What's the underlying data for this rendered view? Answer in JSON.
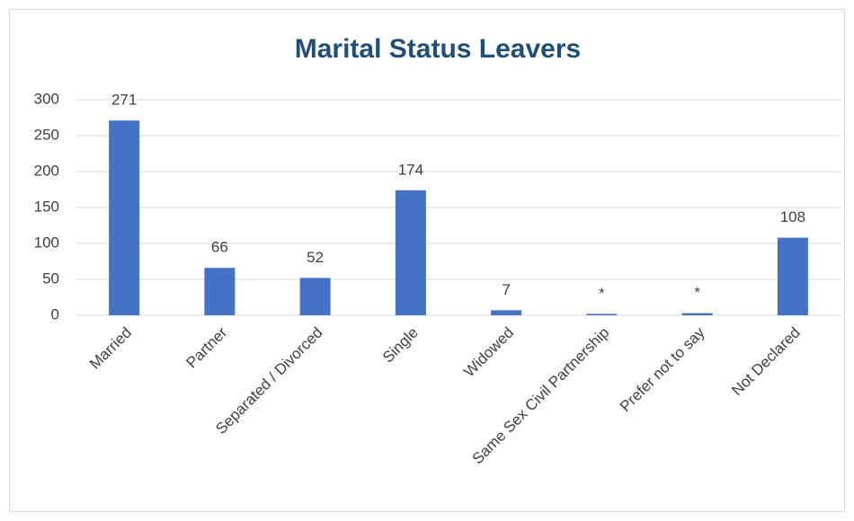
{
  "chart_data": {
    "type": "bar",
    "title": "Marital Status Leavers",
    "categories": [
      "Married",
      "Partner",
      "Separated / Divorced",
      "Single",
      "Widowed",
      "Same Sex Civil Partnership",
      "Prefer not to say",
      "Not Declared"
    ],
    "values": [
      271,
      66,
      52,
      174,
      7,
      2,
      3,
      108
    ],
    "value_labels": [
      "271",
      "66",
      "52",
      "174",
      "7",
      "*",
      "*",
      "108"
    ],
    "color": "#4472c4",
    "ylim": [
      0,
      300
    ],
    "yticks": [
      0,
      50,
      100,
      150,
      200,
      250,
      300
    ],
    "grid": true
  }
}
